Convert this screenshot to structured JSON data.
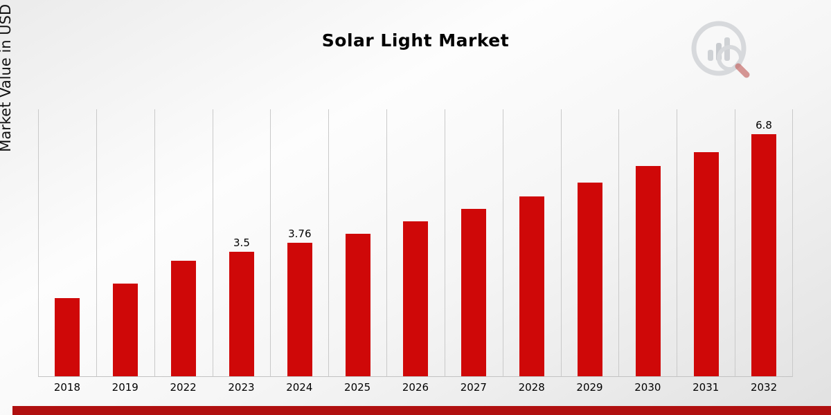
{
  "page": {
    "title": "Solar Light Market",
    "y_axis_label": "Market Value in USD Billion"
  },
  "branding": {
    "logo": "market-research-chart-magnifier-logo"
  },
  "colors": {
    "bar": "#cf0808",
    "footer_bar": "#b01010",
    "gridline": "#c9c9c9",
    "logo_gray": "#d2d4d7",
    "logo_red": "#c05a56"
  },
  "chart_data": {
    "type": "bar",
    "title": "Solar Light Market",
    "xlabel": "",
    "ylabel": "Market Value in USD Billion",
    "categories": [
      "2018",
      "2019",
      "2022",
      "2023",
      "2024",
      "2025",
      "2026",
      "2027",
      "2028",
      "2029",
      "2030",
      "2031",
      "2032"
    ],
    "values": [
      2.2,
      2.6,
      3.25,
      3.5,
      3.76,
      4.0,
      4.35,
      4.7,
      5.05,
      5.45,
      5.9,
      6.3,
      6.8
    ],
    "data_labels": [
      "",
      "",
      "",
      "3.5",
      "3.76",
      "",
      "",
      "",
      "",
      "",
      "",
      "",
      "6.8"
    ],
    "ylim": [
      0,
      7.5
    ],
    "grid": "vertical-only",
    "legend": "none",
    "bar_color": "#cf0808"
  }
}
